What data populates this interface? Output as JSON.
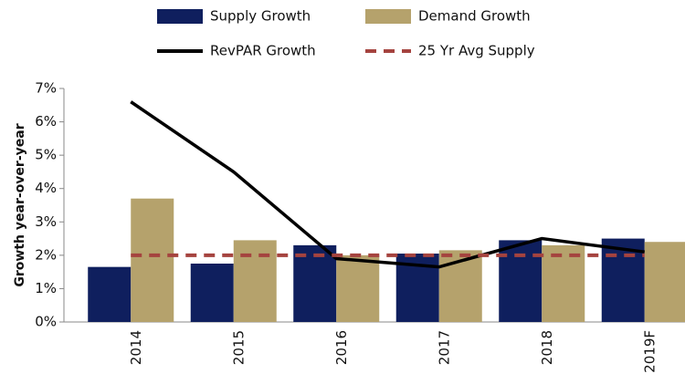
{
  "chart_data": {
    "type": "bar",
    "y_label": "Growth year-over-year",
    "categories": [
      "2014",
      "2015",
      "2016",
      "2017",
      "2018",
      "2019F"
    ],
    "series": [
      {
        "name": "Supply Growth",
        "type": "bar",
        "color": "#0f1f5e",
        "values": [
          1.65,
          1.75,
          2.3,
          2.05,
          2.45,
          2.5
        ]
      },
      {
        "name": "Demand Growth",
        "type": "bar",
        "color": "#b5a26c",
        "values": [
          3.7,
          2.45,
          2.0,
          2.15,
          2.3,
          2.4
        ]
      },
      {
        "name": "RevPAR Growth",
        "type": "line",
        "color": "#000000",
        "values": [
          6.6,
          4.5,
          1.9,
          1.65,
          2.5,
          2.1
        ]
      },
      {
        "name": "25 Yr Avg Supply",
        "type": "line",
        "color": "#a5433f",
        "dash": true,
        "values": [
          2.0,
          2.0,
          2.0,
          2.0,
          2.0,
          2.0
        ]
      }
    ],
    "ylim": [
      0,
      7
    ],
    "yticks": [
      {
        "value": 0,
        "label": "0%"
      },
      {
        "value": 1,
        "label": "1%"
      },
      {
        "value": 2,
        "label": "2%"
      },
      {
        "value": 3,
        "label": "3%"
      },
      {
        "value": 4,
        "label": "4%"
      },
      {
        "value": 5,
        "label": "5%"
      },
      {
        "value": 6,
        "label": "6%"
      },
      {
        "value": 7,
        "label": "7%"
      }
    ],
    "legend": "top"
  }
}
